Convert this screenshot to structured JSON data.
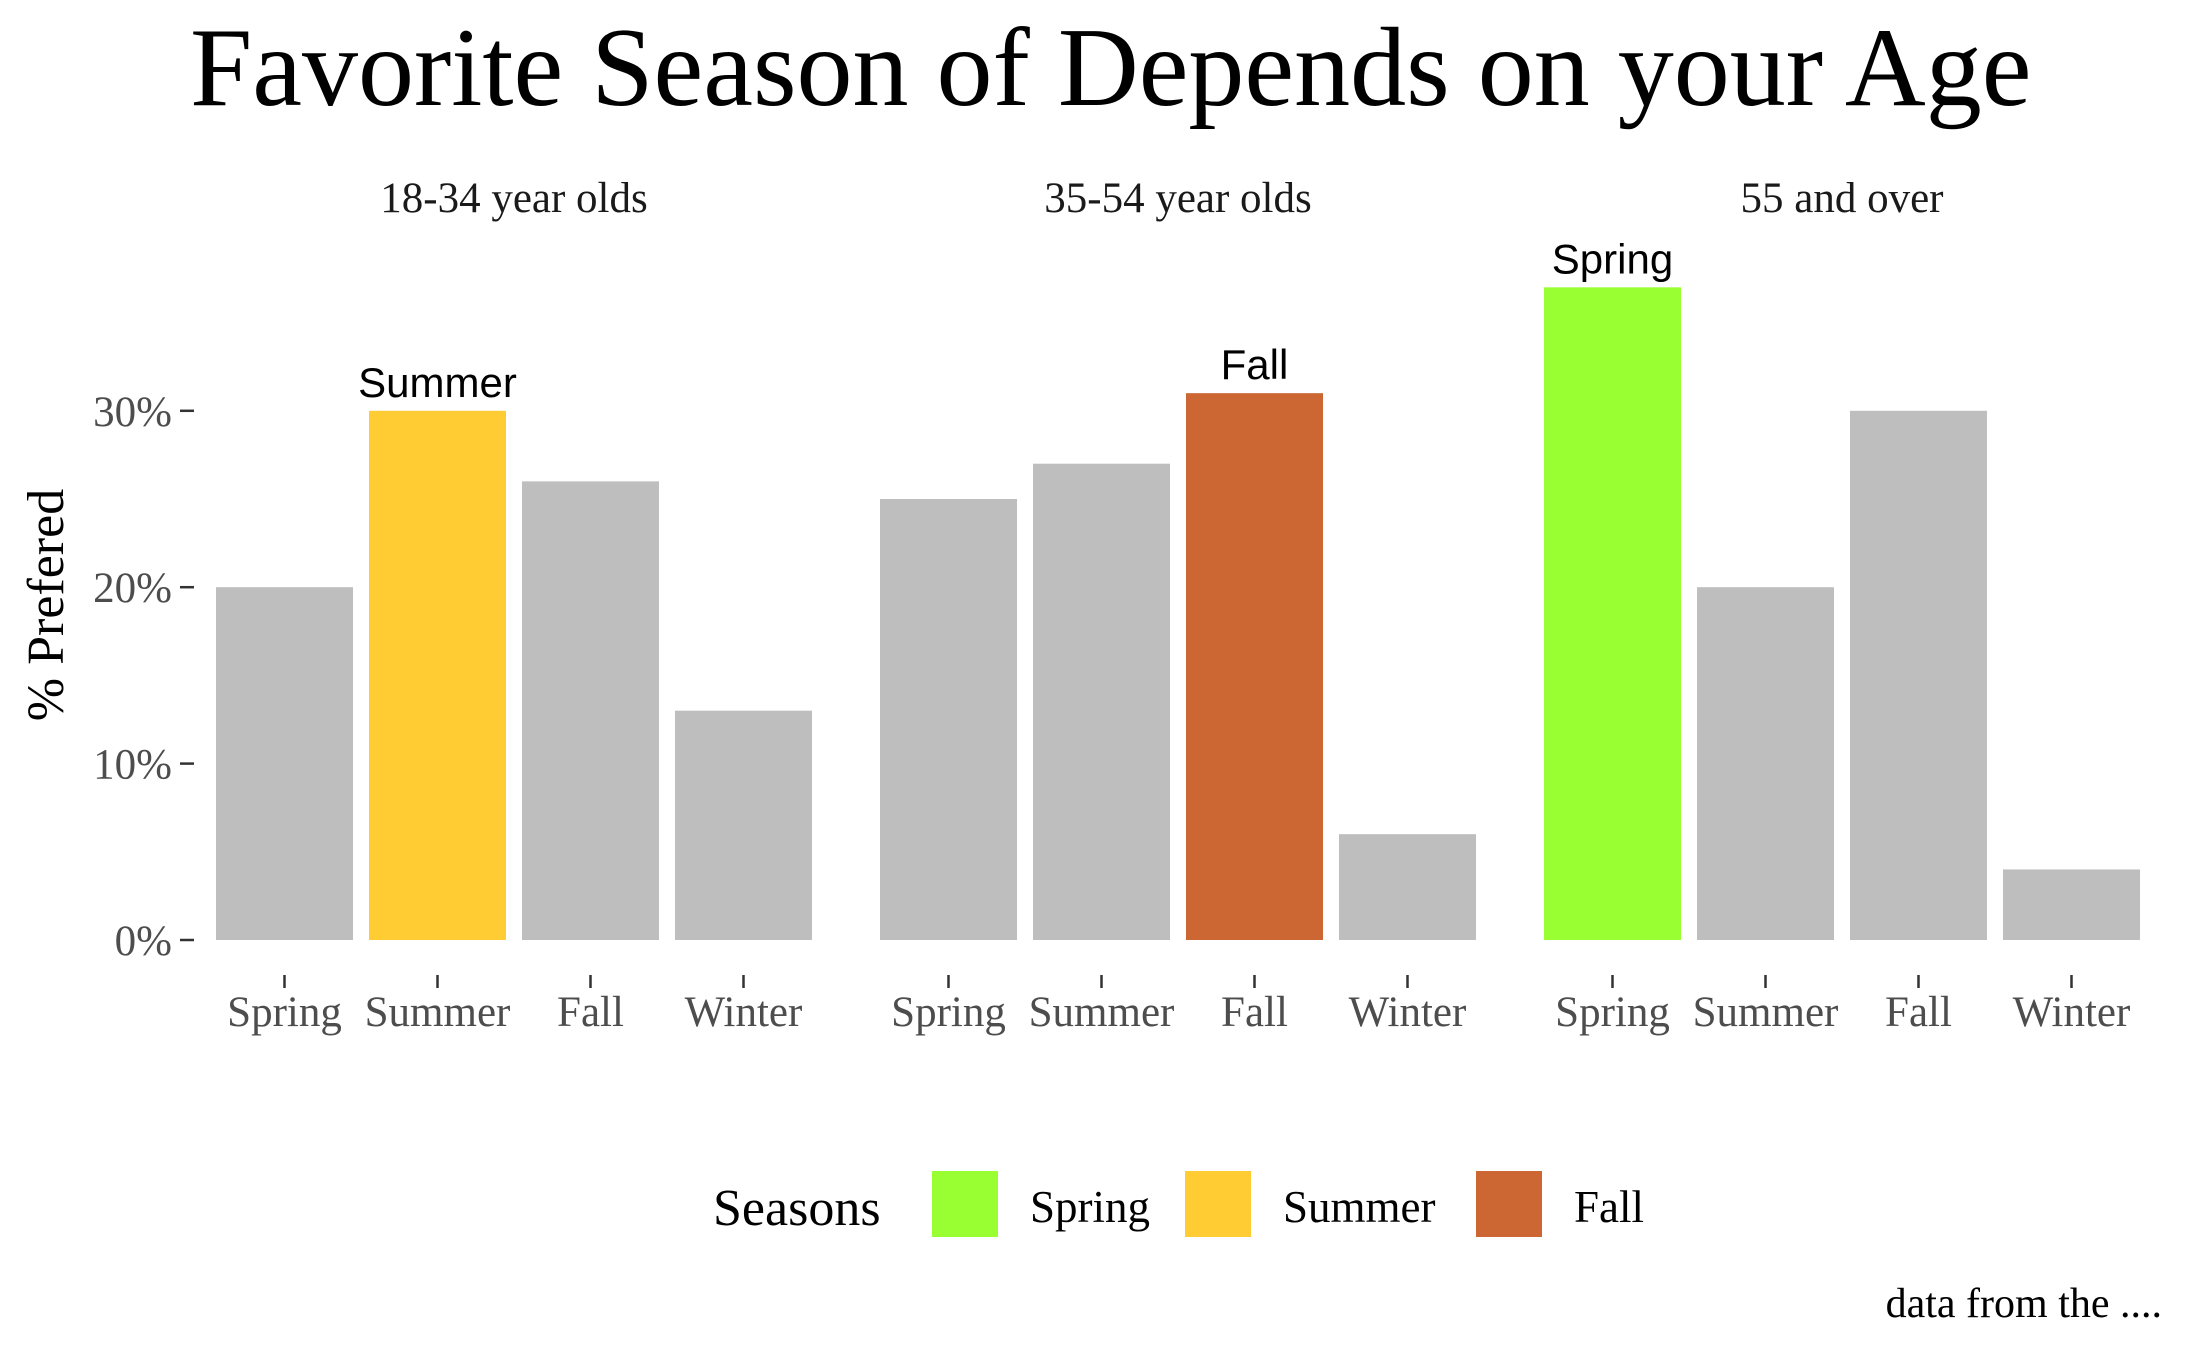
{
  "chart_data": {
    "type": "bar",
    "title": "Favorite Season of Depends on your Age",
    "ylabel": "% Prefered",
    "xlabel": "",
    "ylim": [
      0,
      0.4
    ],
    "y_ticks": [
      {
        "value": 0,
        "label": "0%"
      },
      {
        "value": 0.1,
        "label": "10%"
      },
      {
        "value": 0.2,
        "label": "20%"
      },
      {
        "value": 0.3,
        "label": "30%"
      }
    ],
    "categories": [
      "Spring",
      "Summer",
      "Fall",
      "Winter"
    ],
    "facets": [
      {
        "label": "18-34 year olds",
        "values": [
          0.2,
          0.3,
          0.26,
          0.13
        ],
        "highlight": 1,
        "highlight_label": "Summer"
      },
      {
        "label": "35-54 year olds",
        "values": [
          0.25,
          0.27,
          0.31,
          0.06
        ],
        "highlight": 2,
        "highlight_label": "Fall"
      },
      {
        "label": "55 and over",
        "values": [
          0.37,
          0.2,
          0.3,
          0.04
        ],
        "highlight": 0,
        "highlight_label": "Spring"
      }
    ],
    "colors": {
      "Spring": "#99FF33",
      "Summer": "#FFCC33",
      "Fall": "#CC6633",
      "other": "#BEBEBE"
    },
    "legend": {
      "title": "Seasons",
      "position": "bottom",
      "items": [
        {
          "label": "Spring",
          "color": "#99FF33"
        },
        {
          "label": "Summer",
          "color": "#FFCC33"
        },
        {
          "label": "Fall",
          "color": "#CC6633"
        }
      ]
    },
    "grid": false,
    "caption": "data from the ...."
  }
}
